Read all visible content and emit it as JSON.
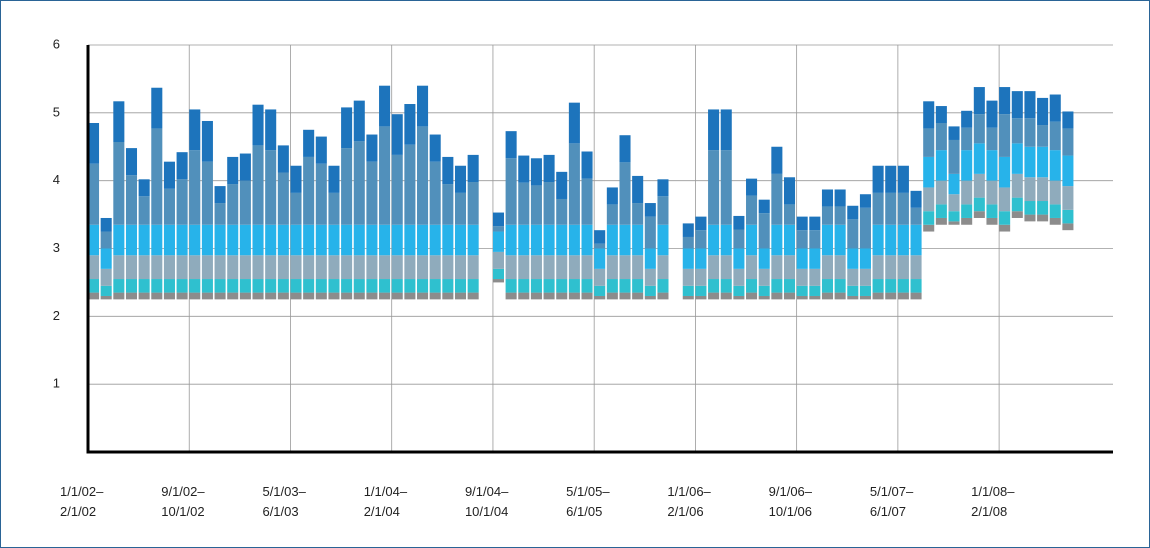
{
  "chart_data": {
    "type": "floating-stacked-bar",
    "categories": [
      "1/1/02–2/1/02",
      null,
      null,
      null,
      null,
      null,
      null,
      null,
      "9/1/02–10/1/02",
      null,
      null,
      null,
      null,
      null,
      null,
      null,
      "5/1/03–6/1/03",
      null,
      null,
      null,
      null,
      null,
      null,
      null,
      "1/1/04–2/1/04",
      null,
      null,
      null,
      null,
      null,
      null,
      null,
      "9/1/04–10/1/04",
      null,
      null,
      null,
      null,
      null,
      null,
      null,
      "5/1/05–6/1/05",
      null,
      null,
      null,
      null,
      null,
      null,
      null,
      "1/1/06–2/1/06",
      null,
      null,
      null,
      null,
      null,
      null,
      null,
      "9/1/06–10/1/06",
      null,
      null,
      null,
      null,
      null,
      null,
      null,
      "5/1/07–6/1/07",
      null,
      null,
      null,
      null,
      null,
      null,
      null,
      "1/1/08–2/1/08",
      null,
      null,
      null,
      null,
      null,
      null,
      null,
      null
    ],
    "series": [
      {
        "color": "none",
        "values": [
          2.25,
          2.25,
          2.25,
          2.25,
          2.25,
          2.25,
          2.25,
          2.25,
          2.25,
          2.25,
          2.25,
          2.25,
          2.25,
          2.25,
          2.25,
          2.25,
          2.25,
          2.25,
          2.25,
          2.25,
          2.25,
          2.25,
          2.25,
          2.25,
          2.25,
          2.25,
          2.25,
          2.25,
          2.25,
          2.25,
          2.25,
          null,
          2.5,
          2.25,
          2.25,
          2.25,
          2.25,
          2.25,
          2.25,
          2.25,
          2.25,
          2.25,
          2.25,
          2.25,
          2.25,
          2.25,
          null,
          2.25,
          2.25,
          2.25,
          2.25,
          2.25,
          2.25,
          2.25,
          2.25,
          2.25,
          2.25,
          2.25,
          2.25,
          2.25,
          2.25,
          2.25,
          2.25,
          2.25,
          2.25,
          2.25,
          3.25,
          3.35,
          3.35,
          3.35,
          3.45,
          3.35,
          3.25,
          3.45,
          3.4,
          3.4,
          3.35,
          3.27,
          null,
          null,
          null
        ]
      },
      {
        "color": "#8c8c8c",
        "values": [
          0.1,
          0.05,
          0.1,
          0.1,
          0.1,
          0.1,
          0.1,
          0.1,
          0.1,
          0.1,
          0.1,
          0.1,
          0.1,
          0.1,
          0.1,
          0.1,
          0.1,
          0.1,
          0.1,
          0.1,
          0.1,
          0.1,
          0.1,
          0.1,
          0.1,
          0.1,
          0.1,
          0.1,
          0.1,
          0.1,
          0.1,
          null,
          0.05,
          0.1,
          0.1,
          0.1,
          0.1,
          0.1,
          0.1,
          0.1,
          0.05,
          0.1,
          0.1,
          0.1,
          0.05,
          0.1,
          null,
          0.05,
          0.05,
          0.1,
          0.1,
          0.05,
          0.1,
          0.05,
          0.1,
          0.1,
          0.05,
          0.05,
          0.1,
          0.1,
          0.05,
          0.05,
          0.1,
          0.1,
          0.1,
          0.1,
          0.1,
          0.1,
          0.05,
          0.1,
          0.1,
          0.1,
          0.1,
          0.1,
          0.1,
          0.1,
          0.1,
          0.1,
          null,
          null,
          null
        ]
      },
      {
        "color": "#2fc0cf",
        "values": [
          0.2,
          0.15,
          0.2,
          0.2,
          0.2,
          0.2,
          0.2,
          0.2,
          0.2,
          0.2,
          0.2,
          0.2,
          0.2,
          0.2,
          0.2,
          0.2,
          0.2,
          0.2,
          0.2,
          0.2,
          0.2,
          0.2,
          0.2,
          0.2,
          0.2,
          0.2,
          0.2,
          0.2,
          0.2,
          0.2,
          0.2,
          null,
          0.15,
          0.2,
          0.2,
          0.2,
          0.2,
          0.2,
          0.2,
          0.2,
          0.15,
          0.2,
          0.2,
          0.2,
          0.15,
          0.2,
          null,
          0.15,
          0.15,
          0.2,
          0.2,
          0.15,
          0.2,
          0.15,
          0.2,
          0.2,
          0.15,
          0.15,
          0.2,
          0.2,
          0.15,
          0.15,
          0.2,
          0.2,
          0.2,
          0.2,
          0.2,
          0.2,
          0.15,
          0.2,
          0.2,
          0.2,
          0.2,
          0.2,
          0.2,
          0.2,
          0.2,
          0.2,
          null,
          null,
          null
        ]
      },
      {
        "color": "#8fabbc",
        "values": [
          0.35,
          0.25,
          0.35,
          0.35,
          0.35,
          0.35,
          0.35,
          0.35,
          0.35,
          0.35,
          0.35,
          0.35,
          0.35,
          0.35,
          0.35,
          0.35,
          0.35,
          0.35,
          0.35,
          0.35,
          0.35,
          0.35,
          0.35,
          0.35,
          0.35,
          0.35,
          0.35,
          0.35,
          0.35,
          0.35,
          0.35,
          null,
          0.25,
          0.35,
          0.35,
          0.35,
          0.35,
          0.35,
          0.35,
          0.35,
          0.25,
          0.35,
          0.35,
          0.35,
          0.25,
          0.35,
          null,
          0.25,
          0.25,
          0.35,
          0.35,
          0.25,
          0.35,
          0.25,
          0.35,
          0.35,
          0.25,
          0.25,
          0.35,
          0.35,
          0.25,
          0.25,
          0.35,
          0.35,
          0.35,
          0.35,
          0.35,
          0.35,
          0.25,
          0.35,
          0.35,
          0.35,
          0.35,
          0.35,
          0.35,
          0.35,
          0.35,
          0.35,
          null,
          null,
          null
        ]
      },
      {
        "color": "#27b3ea",
        "values": [
          0.45,
          0.3,
          0.45,
          0.45,
          0.45,
          0.45,
          0.45,
          0.45,
          0.45,
          0.45,
          0.45,
          0.45,
          0.45,
          0.45,
          0.45,
          0.45,
          0.45,
          0.45,
          0.45,
          0.45,
          0.45,
          0.45,
          0.45,
          0.45,
          0.45,
          0.45,
          0.45,
          0.45,
          0.45,
          0.45,
          0.45,
          null,
          0.3,
          0.45,
          0.45,
          0.45,
          0.45,
          0.45,
          0.45,
          0.45,
          0.3,
          0.45,
          0.45,
          0.45,
          0.3,
          0.45,
          null,
          0.3,
          0.3,
          0.45,
          0.45,
          0.3,
          0.45,
          0.3,
          0.45,
          0.45,
          0.3,
          0.3,
          0.45,
          0.45,
          0.3,
          0.3,
          0.45,
          0.45,
          0.45,
          0.45,
          0.45,
          0.45,
          0.3,
          0.45,
          0.45,
          0.45,
          0.45,
          0.45,
          0.45,
          0.45,
          0.45,
          0.45,
          null,
          null,
          null
        ]
      },
      {
        "color": "#5190bb",
        "values": [
          0.9,
          0.25,
          1.22,
          0.73,
          0.42,
          1.42,
          0.53,
          0.67,
          1.1,
          0.93,
          0.32,
          0.6,
          0.65,
          1.17,
          1.1,
          0.77,
          0.47,
          1.0,
          0.9,
          0.47,
          1.13,
          1.23,
          0.93,
          1.45,
          1.03,
          1.18,
          1.45,
          0.93,
          0.6,
          0.47,
          0.63,
          null,
          0.08,
          0.98,
          0.62,
          0.58,
          0.63,
          0.38,
          1.2,
          0.68,
          0.07,
          0.3,
          0.92,
          0.32,
          0.47,
          0.42,
          null,
          0.17,
          0.27,
          1.1,
          1.1,
          0.28,
          0.43,
          0.52,
          0.75,
          0.3,
          0.27,
          0.27,
          0.27,
          0.27,
          0.43,
          0.6,
          0.47,
          0.47,
          0.47,
          0.25,
          0.42,
          0.4,
          0.5,
          0.33,
          0.43,
          0.33,
          0.63,
          0.37,
          0.42,
          0.32,
          0.42,
          0.4,
          null,
          null,
          null
        ]
      },
      {
        "color": "#1d74bc",
        "values": [
          0.6,
          0.2,
          0.6,
          0.4,
          0.25,
          0.6,
          0.4,
          0.4,
          0.6,
          0.6,
          0.25,
          0.4,
          0.4,
          0.6,
          0.6,
          0.4,
          0.4,
          0.4,
          0.4,
          0.4,
          0.6,
          0.6,
          0.4,
          0.6,
          0.6,
          0.6,
          0.6,
          0.4,
          0.4,
          0.4,
          0.4,
          null,
          0.2,
          0.4,
          0.4,
          0.4,
          0.4,
          0.4,
          0.6,
          0.4,
          0.2,
          0.25,
          0.4,
          0.4,
          0.2,
          0.25,
          null,
          0.2,
          0.2,
          0.6,
          0.6,
          0.2,
          0.25,
          0.2,
          0.4,
          0.4,
          0.2,
          0.2,
          0.25,
          0.25,
          0.2,
          0.2,
          0.4,
          0.4,
          0.4,
          0.25,
          0.4,
          0.25,
          0.2,
          0.25,
          0.4,
          0.4,
          0.4,
          0.4,
          0.4,
          0.4,
          0.4,
          0.25,
          null,
          null,
          null
        ]
      }
    ],
    "ylim": [
      0,
      6
    ],
    "yticks": [
      1,
      2,
      3,
      4,
      5,
      6
    ],
    "grid": true
  }
}
